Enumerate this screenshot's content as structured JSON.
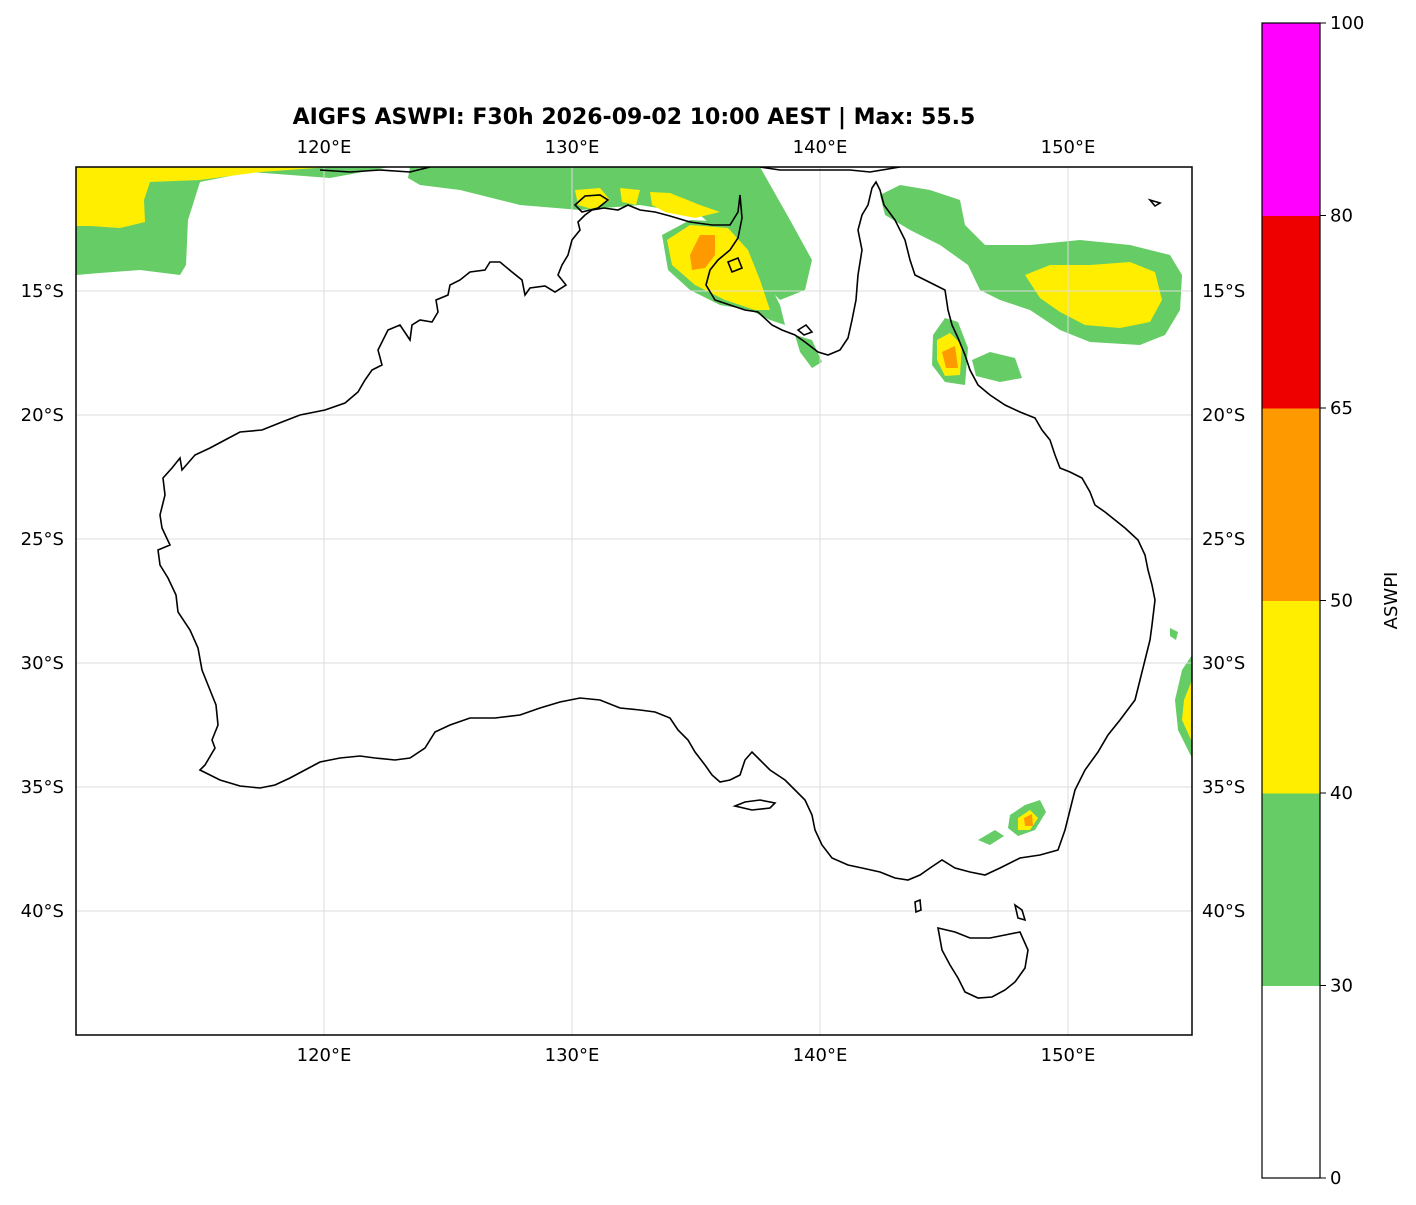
{
  "title": "AIGFS ASWPI: F30h 2026-09-02 10:00 AEST | Max: 55.5",
  "map": {
    "lon_range": [
      110,
      155
    ],
    "lat_range": [
      -45,
      -10
    ],
    "gridlines": true,
    "lon_ticks": [
      120,
      130,
      140,
      150
    ],
    "lat_ticks": [
      -15,
      -20,
      -25,
      -30,
      -35,
      -40
    ],
    "lon_tick_labels": [
      "120°E",
      "130°E",
      "140°E",
      "150°E"
    ],
    "lat_tick_labels": [
      "15°S",
      "20°S",
      "25°S",
      "30°S",
      "35°S",
      "40°S"
    ]
  },
  "colorbar": {
    "label": "ASWPI",
    "boundaries": [
      0,
      30,
      40,
      50,
      65,
      80,
      100
    ],
    "tick_labels": [
      "0",
      "30",
      "40",
      "50",
      "65",
      "80",
      "100"
    ],
    "colors": [
      "#ffffff",
      "#66cc66",
      "#ffee00",
      "#ff9900",
      "#ee0000",
      "#ff00ff"
    ]
  },
  "colors": {
    "green": "#66cc66",
    "yellow": "#ffee00",
    "orange": "#ff9900",
    "coast": "#000000",
    "grid": "#dddddd"
  }
}
